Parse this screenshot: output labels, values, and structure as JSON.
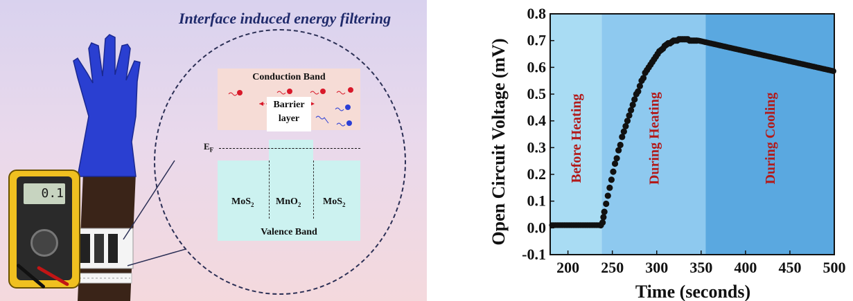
{
  "schematic": {
    "title": "Interface induced energy filtering",
    "conduction_band": "Conduction Band",
    "barrier_layer": "Barrier\nlayer",
    "fermi_base": "E",
    "fermi_sub": "F",
    "materials": [
      {
        "base": "MoS",
        "sub": "2"
      },
      {
        "base": "MnO",
        "sub": "2"
      },
      {
        "base": "MoS",
        "sub": "2"
      }
    ],
    "valence_band": "Valence Band",
    "meter_reading": "0.1"
  },
  "colors": {
    "glove": "#2a3fd1",
    "electron": "#d8192a",
    "hole": "#2b3fd6",
    "conduction_band_fill": "#f6dcd6",
    "valence_band_fill": "#ccf2f0",
    "region_before": "#a9dcf3",
    "region_during_heating": "#8ec9ef",
    "region_during_cooling": "#5aa8e0",
    "region_label": "#b21a1a",
    "data_points": "#111111"
  },
  "chart_data": {
    "type": "scatter",
    "xlabel": "Time (seconds)",
    "ylabel": "Open Circuit Voltage (mV)",
    "xlim": [
      180,
      500
    ],
    "ylim": [
      -0.1,
      0.8
    ],
    "xticks": [
      200,
      250,
      300,
      350,
      400,
      450,
      500
    ],
    "yticks": [
      -0.1,
      0.0,
      0.1,
      0.2,
      0.3,
      0.4,
      0.5,
      0.6,
      0.7,
      0.8
    ],
    "regions": [
      {
        "label": "Before Heating",
        "x_start": 180,
        "x_end": 238
      },
      {
        "label": "During Heating",
        "x_start": 238,
        "x_end": 355
      },
      {
        "label": "During Cooling",
        "x_start": 355,
        "x_end": 500
      }
    ],
    "series": [
      {
        "points": [
          [
            237,
            0.01
          ],
          [
            239,
            0.02
          ],
          [
            240,
            0.04
          ],
          [
            241,
            0.06
          ],
          [
            243,
            0.09
          ],
          [
            245,
            0.12
          ],
          [
            247,
            0.15
          ],
          [
            249,
            0.18
          ],
          [
            251,
            0.21
          ],
          [
            253,
            0.24
          ],
          [
            255,
            0.26
          ],
          [
            257,
            0.29
          ],
          [
            259,
            0.31
          ],
          [
            261,
            0.34
          ],
          [
            263,
            0.36
          ],
          [
            265,
            0.38
          ],
          [
            267,
            0.4
          ],
          [
            269,
            0.42
          ],
          [
            271,
            0.44
          ],
          [
            273,
            0.46
          ],
          [
            275,
            0.48
          ],
          [
            277,
            0.5
          ],
          [
            279,
            0.51
          ],
          [
            281,
            0.53
          ],
          [
            283,
            0.55
          ],
          [
            285,
            0.56
          ],
          [
            287,
            0.58
          ],
          [
            289,
            0.59
          ],
          [
            291,
            0.6
          ],
          [
            293,
            0.61
          ],
          [
            295,
            0.62
          ],
          [
            297,
            0.63
          ],
          [
            299,
            0.64
          ],
          [
            301,
            0.65
          ],
          [
            303,
            0.66
          ],
          [
            305,
            0.665
          ],
          [
            307,
            0.67
          ],
          [
            309,
            0.68
          ],
          [
            311,
            0.685
          ],
          [
            313,
            0.69
          ],
          [
            315,
            0.69
          ],
          [
            317,
            0.695
          ],
          [
            319,
            0.7
          ],
          [
            321,
            0.7
          ],
          [
            323,
            0.7
          ],
          [
            325,
            0.705
          ],
          [
            327,
            0.705
          ],
          [
            329,
            0.705
          ],
          [
            331,
            0.705
          ],
          [
            333,
            0.705
          ],
          [
            335,
            0.705
          ],
          [
            337,
            0.7
          ],
          [
            339,
            0.7
          ],
          [
            341,
            0.7
          ],
          [
            343,
            0.7
          ],
          [
            345,
            0.7
          ]
        ]
      }
    ]
  }
}
